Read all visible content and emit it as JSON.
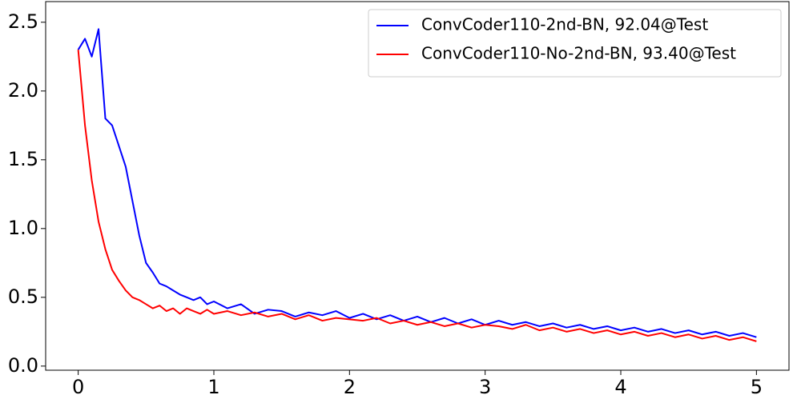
{
  "chart_data": {
    "type": "line",
    "x": [
      0,
      0.05,
      0.1,
      0.15,
      0.2,
      0.25,
      0.3,
      0.35,
      0.4,
      0.45,
      0.5,
      0.55,
      0.6,
      0.65,
      0.7,
      0.75,
      0.8,
      0.85,
      0.9,
      0.95,
      1.0,
      1.1,
      1.2,
      1.3,
      1.4,
      1.5,
      1.6,
      1.7,
      1.8,
      1.9,
      2.0,
      2.1,
      2.2,
      2.3,
      2.4,
      2.5,
      2.6,
      2.7,
      2.8,
      2.9,
      3.0,
      3.1,
      3.2,
      3.3,
      3.4,
      3.5,
      3.6,
      3.7,
      3.8,
      3.9,
      4.0,
      4.1,
      4.2,
      4.3,
      4.4,
      4.5,
      4.6,
      4.7,
      4.8,
      4.9,
      5.0
    ],
    "series": [
      {
        "name": "ConvCoder110-2nd-BN, 92.04@Test",
        "color": "#0000ff",
        "values": [
          2.3,
          2.38,
          2.25,
          2.45,
          1.8,
          1.75,
          1.6,
          1.45,
          1.2,
          0.95,
          0.75,
          0.68,
          0.6,
          0.58,
          0.55,
          0.52,
          0.5,
          0.48,
          0.5,
          0.45,
          0.47,
          0.42,
          0.45,
          0.38,
          0.41,
          0.4,
          0.36,
          0.39,
          0.37,
          0.4,
          0.35,
          0.38,
          0.34,
          0.37,
          0.33,
          0.36,
          0.32,
          0.35,
          0.31,
          0.34,
          0.3,
          0.33,
          0.3,
          0.32,
          0.29,
          0.31,
          0.28,
          0.3,
          0.27,
          0.29,
          0.26,
          0.28,
          0.25,
          0.27,
          0.24,
          0.26,
          0.23,
          0.25,
          0.22,
          0.24,
          0.21
        ]
      },
      {
        "name": "ConvCoder110-No-2nd-BN, 93.40@Test",
        "color": "#ff0000",
        "values": [
          2.3,
          1.75,
          1.35,
          1.05,
          0.85,
          0.7,
          0.62,
          0.55,
          0.5,
          0.48,
          0.45,
          0.42,
          0.44,
          0.4,
          0.42,
          0.38,
          0.42,
          0.4,
          0.38,
          0.41,
          0.38,
          0.4,
          0.37,
          0.39,
          0.36,
          0.38,
          0.34,
          0.37,
          0.33,
          0.35,
          0.34,
          0.33,
          0.35,
          0.31,
          0.33,
          0.3,
          0.32,
          0.29,
          0.31,
          0.28,
          0.3,
          0.29,
          0.27,
          0.3,
          0.26,
          0.28,
          0.25,
          0.27,
          0.24,
          0.26,
          0.23,
          0.25,
          0.22,
          0.24,
          0.21,
          0.23,
          0.2,
          0.22,
          0.19,
          0.21,
          0.18
        ]
      }
    ],
    "xlim": [
      -0.24,
      5.24
    ],
    "xticks": [
      0,
      1,
      2,
      3,
      4,
      5
    ],
    "ylim": [
      -0.03,
      2.65
    ],
    "yticks": [
      {
        "value": 0,
        "label": "0.0"
      },
      0.5,
      {
        "value": 1,
        "label": "1.0"
      },
      1.5,
      {
        "value": 2,
        "label": "2.0"
      },
      2.5
    ],
    "legend": "upper right"
  }
}
